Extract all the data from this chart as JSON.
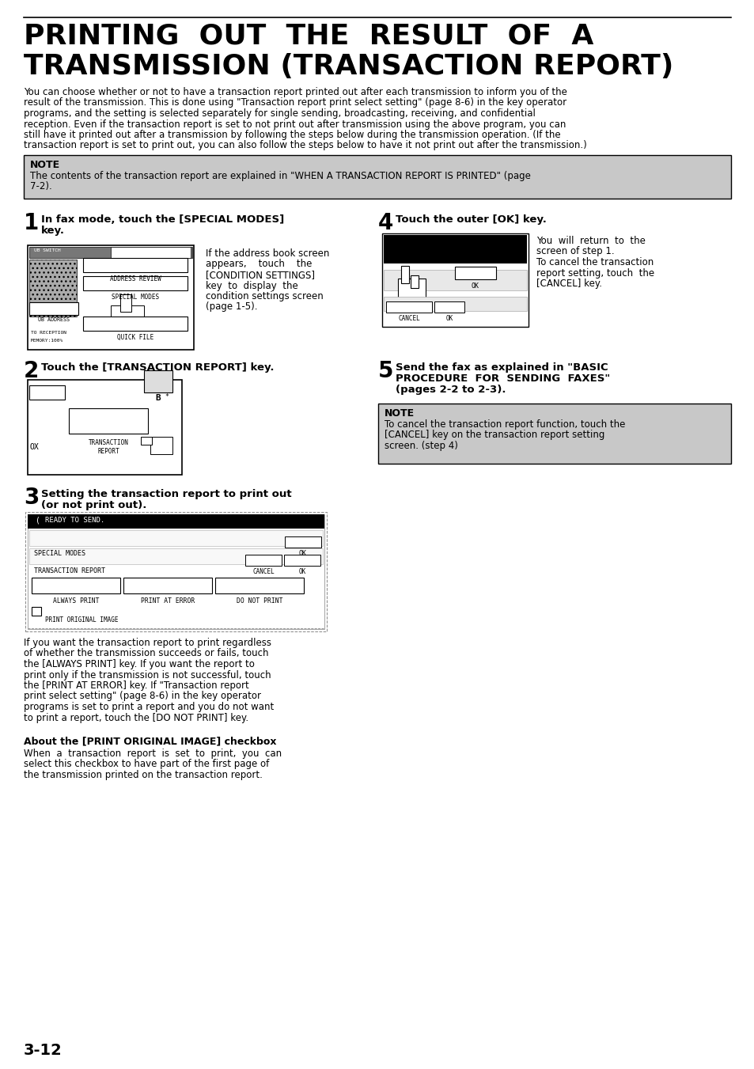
{
  "page_bg": "#ffffff",
  "title_line1": "PRINTING  OUT  THE  RESULT  OF  A",
  "title_line2": "TRANSMISSION (TRANSACTION REPORT)",
  "title_fontsize": 26,
  "title_color": "#000000",
  "body_text_lines": [
    "You can choose whether or not to have a transaction report printed out after each transmission to inform you of the",
    "result of the transmission. This is done using \"Transaction report print select setting\" (page 8-6) in the key operator",
    "programs, and the setting is selected separately for single sending, broadcasting, receiving, and confidential",
    "reception. Even if the transaction report is set to not print out after transmission using the above program, you can",
    "still have it printed out after a transmission by following the steps below during the transmission operation. (If the",
    "transaction report is set to print out, you can also follow the steps below to have it not print out after the transmission.)"
  ],
  "body_fontsize": 8.5,
  "note_bg": "#c8c8c8",
  "note_title": "NOTE",
  "note_text_lines": [
    "The contents of the transaction report are explained in \"WHEN A TRANSACTION REPORT IS PRINTED\" (page",
    "7-2)."
  ],
  "step1_title_lines": [
    "In fax mode, touch the [SPECIAL MODES]",
    "key."
  ],
  "step1_desc_lines": [
    "If the address book screen",
    "appears,    touch    the",
    "[CONDITION SETTINGS]",
    "key  to  display  the",
    "condition settings screen",
    "(page 1-5)."
  ],
  "step2_title": "Touch the [TRANSACTION REPORT] key.",
  "step3_title_lines": [
    "Setting the transaction report to print out",
    "(or not print out)."
  ],
  "step3_desc_lines": [
    "If you want the transaction report to print regardless",
    "of whether the transmission succeeds or fails, touch",
    "the [ALWAYS PRINT] key. If you want the report to",
    "print only if the transmission is not successful, touch",
    "the [PRINT AT ERROR] key. If \"Transaction report",
    "print select setting\" (page 8-6) in the key operator",
    "programs is set to print a report and you do not want",
    "to print a report, touch the [DO NOT PRINT] key."
  ],
  "step4_title": "Touch the outer [OK] key.",
  "step4_desc_lines": [
    "You  will  return  to  the",
    "screen of step 1.",
    "To cancel the transaction",
    "report setting, touch  the",
    "[CANCEL] key."
  ],
  "step5_title_lines": [
    "Send the fax as explained in \"BASIC",
    "PROCEDURE  FOR  SENDING  FAXES\"",
    "(pages 2-2 to 2-3)."
  ],
  "note2_title": "NOTE",
  "note2_text_lines": [
    "To cancel the transaction report function, touch the",
    "[CANCEL] key on the transaction report setting",
    "screen. (step 4)"
  ],
  "about_title": "About the [PRINT ORIGINAL IMAGE] checkbox",
  "about_text_lines": [
    "When  a  transaction  report  is  set  to  print,  you  can",
    "select this checkbox to have part of the first page of",
    "the transmission printed on the transaction report."
  ],
  "page_num": "3-12"
}
